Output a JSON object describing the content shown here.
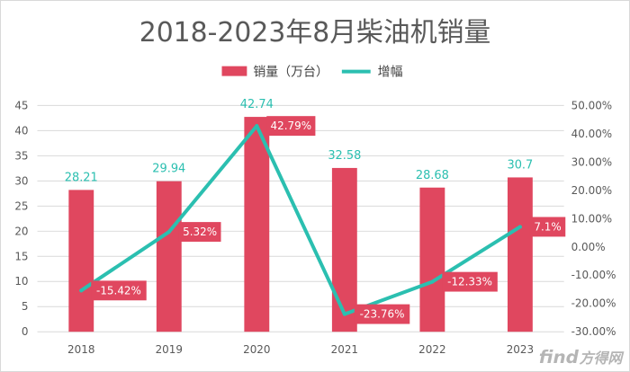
{
  "chart_data": {
    "type": "bar",
    "title": "2018-2023年8月柴油机销量",
    "categories": [
      "2018",
      "2019",
      "2020",
      "2021",
      "2022",
      "2023"
    ],
    "series": [
      {
        "name": "销量（万台）",
        "type": "bar",
        "axis": "left",
        "color": "#e0475f",
        "values": [
          28.21,
          29.94,
          42.74,
          32.58,
          28.68,
          30.7
        ],
        "labels": [
          "28.21",
          "29.94",
          "42.74",
          "32.58",
          "28.68",
          "30.7"
        ]
      },
      {
        "name": "增幅",
        "type": "line",
        "axis": "right",
        "color": "#2bbfb0",
        "values": [
          -15.42,
          5.32,
          42.79,
          -23.76,
          -12.33,
          7.1
        ],
        "labels": [
          "-15.42%",
          "5.32%",
          "42.79%",
          "-23.76%",
          "-12.33%",
          "7.1%"
        ]
      }
    ],
    "ylim": [
      0,
      45
    ],
    "y_ticks": [
      "0",
      "5",
      "10",
      "15",
      "20",
      "25",
      "30",
      "35",
      "40",
      "45"
    ],
    "y2lim": [
      -30,
      50
    ],
    "y2_ticks": [
      "-30.00%",
      "-20.00%",
      "-10.00%",
      "0.00%",
      "10.00%",
      "20.00%",
      "30.00%",
      "40.00%",
      "50.00%"
    ],
    "grid": true,
    "legend": "top-center"
  },
  "watermark": {
    "brand": "find",
    "suffix": "方得网"
  }
}
